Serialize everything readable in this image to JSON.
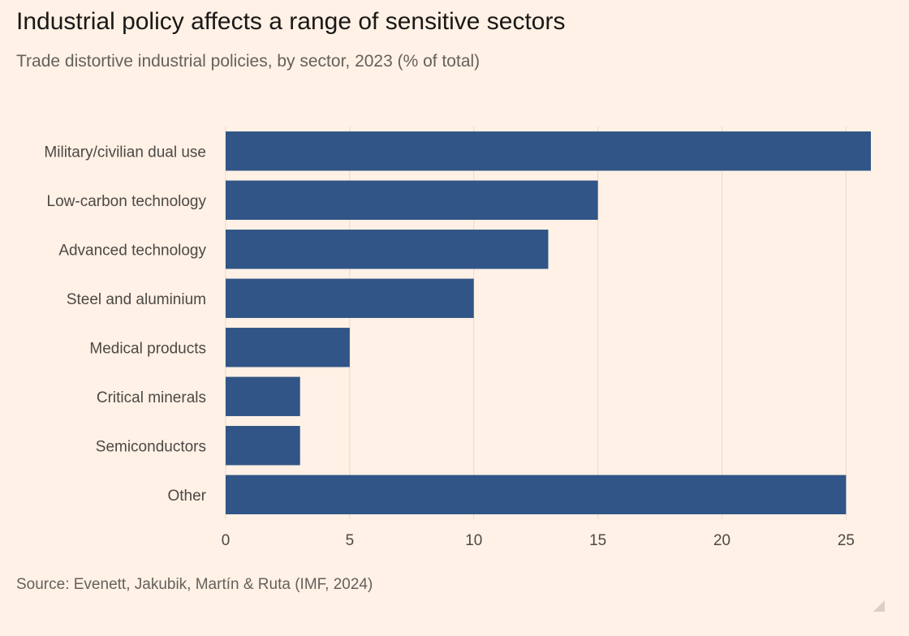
{
  "title": "Industrial policy affects a range of sensitive sectors",
  "subtitle": "Trade distortive industrial policies, by sector, 2023 (% of total)",
  "source": "Source: Evenett, Jakubik, Martín & Ruta (IMF, 2024)",
  "colors": {
    "bar": "#305586",
    "background": "#fff1e5",
    "grid": "#e6d9ce"
  },
  "chart_data": {
    "type": "bar",
    "orientation": "horizontal",
    "categories": [
      "Military/civilian dual use",
      "Low-carbon technology",
      "Advanced technology",
      "Steel and aluminium",
      "Medical products",
      "Critical minerals",
      "Semiconductors",
      "Other"
    ],
    "values": [
      26,
      15,
      13,
      10,
      5,
      3,
      3,
      25
    ],
    "xlim": [
      0,
      26
    ],
    "xticks": [
      0,
      5,
      10,
      15,
      20,
      25
    ],
    "grid": true
  }
}
